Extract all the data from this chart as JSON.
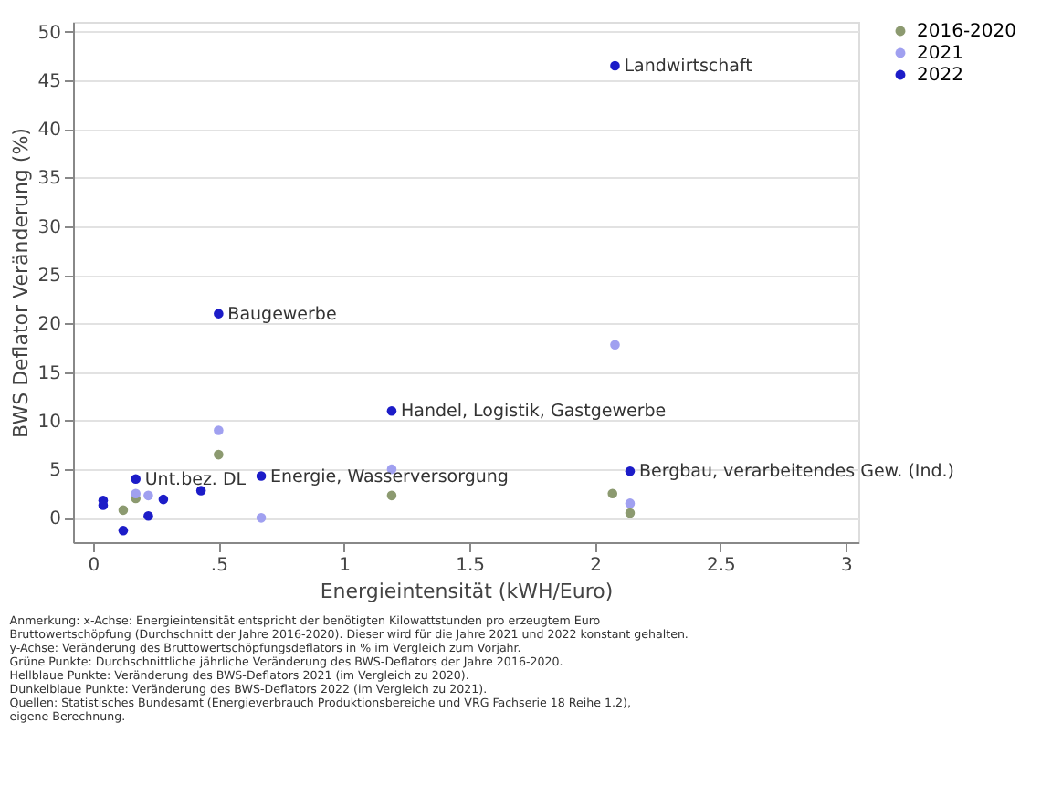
{
  "chart_data": {
    "type": "scatter",
    "xlabel": "Energieintensität (kWH/Euro)",
    "ylabel": "BWS Deflator Veränderung (%)",
    "xlim": [
      -0.08,
      3.05
    ],
    "ylim": [
      -2.5,
      51
    ],
    "xticks": [
      0,
      {
        "value": 0.5,
        "label": ".5"
      },
      1,
      1.5,
      2,
      2.5,
      3
    ],
    "yticks": [
      0,
      5,
      10,
      15,
      20,
      25,
      30,
      35,
      40,
      45,
      50
    ],
    "grid": "y",
    "legend": "right",
    "marker": "circle",
    "series": [
      {
        "name": "2016-2020",
        "color": "#8c9a70",
        "x": [
          2.07,
          0.5,
          1.19,
          2.14,
          0.17,
          0.12
        ],
        "values": [
          2.5,
          6.5,
          2.3,
          0.5,
          2,
          0.8
        ]
      },
      {
        "name": "2021",
        "color": "#a0a0f0",
        "x": [
          2.08,
          0.5,
          1.19,
          0.67,
          2.14,
          0.17,
          0.22
        ],
        "values": [
          17.8,
          9,
          5,
          0,
          1.5,
          2.5,
          2.3
        ]
      },
      {
        "name": "2022",
        "color": "#1c1cc8",
        "x": [
          2.08,
          0.5,
          1.19,
          0.67,
          2.14,
          0.17,
          0.04,
          0.04,
          0.12,
          0.22,
          0.28,
          0.43
        ],
        "values": [
          46.5,
          21,
          11,
          4.3,
          4.8,
          4,
          1.8,
          1.3,
          -1.3,
          0.2,
          1.9,
          2.8
        ]
      }
    ],
    "annotations": [
      {
        "text": "Landwirtschaft",
        "x": 2.08,
        "y": 46.5
      },
      {
        "text": "Baugewerbe",
        "x": 0.5,
        "y": 21
      },
      {
        "text": "Handel, Logistik, Gastgewerbe",
        "x": 1.19,
        "y": 11
      },
      {
        "text": "Unt.bez. DL",
        "x": 0.17,
        "y": 4
      },
      {
        "text": "Energie, Wasserversorgung",
        "x": 0.67,
        "y": 4.3
      },
      {
        "text": "Bergbau, verarbeitendes Gew. (Ind.)",
        "x": 2.14,
        "y": 4.8
      },
      "Anmerkung: x-Achse: Energieintensität entspricht der benötigten Kilowattstunden pro erzeugtem Euro",
      "Bruttowertschöpfung (Durchschnitt der Jahre 2016-2020). Dieser wird für die Jahre 2021 und 2022 konstant gehalten.",
      "y-Achse: Veränderung des Bruttowertschöpfungsdeflators in % im Vergleich zum Vorjahr.",
      "Grüne Punkte: Durchschnittliche jährliche Veränderung des BWS-Deflators der Jahre 2016-2020.",
      "Hellblaue Punkte: Veränderung des BWS-Deflators 2021 (im Vergleich zu 2020).",
      "Dunkelblaue Punkte: Veränderung des BWS-Deflators 2022 (im Vergleich zu 2021).",
      "Quellen: Statistisches Bundesamt (Energieverbrauch Produktionsbereiche und VRG Fachserie 18 Reihe 1.2),",
      "eigene Berechnung."
    ]
  }
}
